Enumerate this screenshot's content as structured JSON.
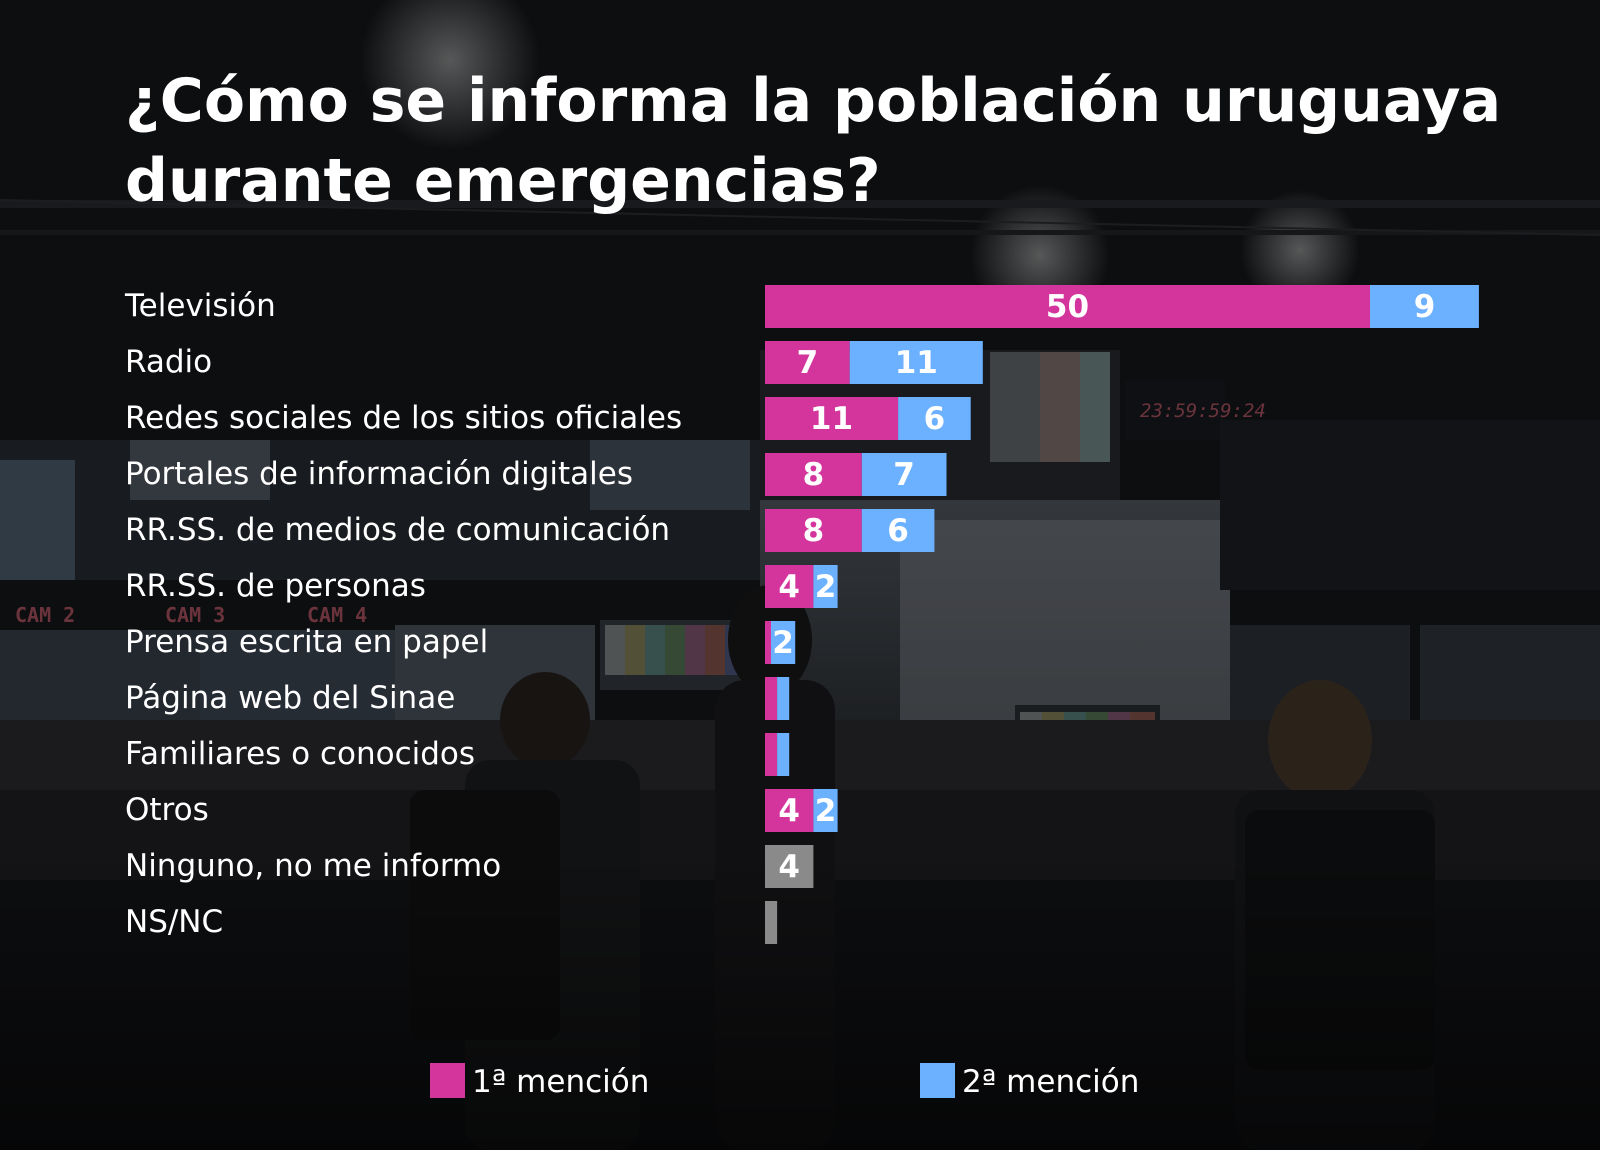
{
  "title_lines": [
    "¿Cómo se informa la población uruguaya",
    "durante emergencias?"
  ],
  "background_overlays": {
    "clock": "23:59:59:24",
    "cams": [
      "CAM 2",
      "CAM 3",
      "CAM 4"
    ]
  },
  "colors": {
    "first": "#d4359c",
    "second": "#6cb1ff",
    "other": "#8a8a8a",
    "text": "#ffffff"
  },
  "chart_data": {
    "type": "bar",
    "orientation": "horizontal",
    "stacked": true,
    "title": "¿Cómo se informa la población uruguaya durante emergencias?",
    "categories": [
      "Televisión",
      "Radio",
      "Redes sociales de los sitios oficiales",
      "Portales de información digitales",
      "RR.SS. de medios de comunicación",
      "RR.SS. de personas",
      "Prensa escrita en papel",
      "Página web del Sinae",
      "Familiares o conocidos",
      "Otros",
      "Ninguno, no me informo",
      "NS/NC"
    ],
    "series": [
      {
        "name": "1ª mención",
        "color": "#d4359c",
        "values": [
          50,
          7,
          11,
          8,
          8,
          4,
          0.5,
          1,
          1,
          4,
          0,
          0
        ]
      },
      {
        "name": "2ª mención",
        "color": "#6cb1ff",
        "values": [
          9,
          11,
          6,
          7,
          6,
          2,
          2,
          1,
          1,
          2,
          0,
          0
        ]
      },
      {
        "name": "",
        "color": "#8a8a8a",
        "values": [
          0,
          0,
          0,
          0,
          0,
          0,
          0,
          0,
          0,
          0,
          4,
          1
        ]
      }
    ],
    "labels": [
      [
        "50",
        "9",
        null
      ],
      [
        "7",
        "11",
        null
      ],
      [
        "11",
        "6",
        null
      ],
      [
        "8",
        "7",
        null
      ],
      [
        "8",
        "6",
        null
      ],
      [
        "4",
        "2",
        null
      ],
      [
        null,
        "2",
        null
      ],
      [
        null,
        null,
        null
      ],
      [
        null,
        null,
        null
      ],
      [
        "4",
        "2",
        null
      ],
      [
        null,
        null,
        "4"
      ],
      [
        null,
        null,
        null
      ]
    ],
    "legend": [
      "1ª mención",
      "2ª mención"
    ],
    "legend_position": "bottom",
    "grid": false
  }
}
